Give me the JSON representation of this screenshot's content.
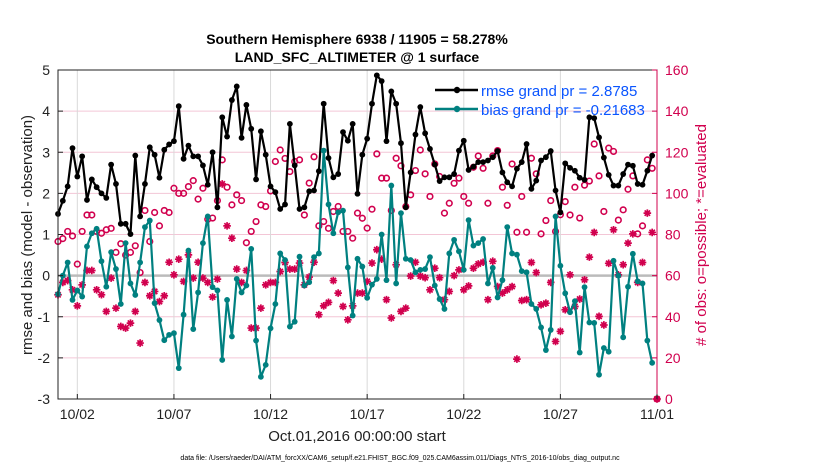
{
  "chart_data": {
    "type": "line",
    "title": [
      "Southern Hemisphere 6938 / 11905 = 58.278%",
      "LAND_SFC_ALTIMETER @ 1 surface"
    ],
    "xlabel": "Oct.01,2016 00:00:00 start",
    "ylabel": "rmse and bias (model - observation)",
    "ylabel_right": "# of obs: o=possible; *=evaluated",
    "footer": "data file: /Users/raeder/DAI/ATM_forcXX/CAM6_setup/f.e21.FHIST_BGC.f09_025.CAM6assim.011/Diags_NTrS_2016-10/obs_diag_output.nc",
    "x_start": "2016-10-01 00:00",
    "x_step_hours": 6,
    "xlim": [
      "10/01",
      "11/01"
    ],
    "x_ticks": [
      "10/02",
      "10/07",
      "10/12",
      "10/17",
      "10/22",
      "10/27",
      "11/01"
    ],
    "x_tick_days": [
      1,
      6,
      11,
      16,
      21,
      26,
      31
    ],
    "ylim": [
      -3,
      5
    ],
    "y_ticks": [
      "-3",
      "-2",
      "-1",
      "0",
      "1",
      "2",
      "3",
      "4",
      "5"
    ],
    "ylim_right": [
      0,
      160
    ],
    "y_ticks_right": [
      "0",
      "20",
      "40",
      "60",
      "80",
      "100",
      "120",
      "140",
      "160"
    ],
    "grid": true,
    "legend_position": "top-right",
    "colors": {
      "rmse": "#000000",
      "bias": "#008080",
      "obs": "#d1004e",
      "legend_text": "#0a55ff",
      "zero_line": "#bbbbbb"
    },
    "series": [
      {
        "name": "rmse grand pr = 2.8785",
        "axis": "left",
        "marker": "filled-circle",
        "values": [
          1.5,
          1.82,
          2.17,
          3.1,
          2.41,
          2.9,
          1.84,
          2.34,
          2.15,
          2.0,
          1.89,
          2.7,
          2.23,
          1.26,
          1.26,
          1.01,
          2.92,
          1.44,
          2.23,
          3.12,
          2.94,
          2.38,
          3.06,
          3.19,
          3.27,
          4.12,
          2.84,
          3.16,
          2.9,
          2.9,
          2.68,
          2.21,
          3.0,
          1.66,
          3.85,
          3.38,
          4.27,
          4.6,
          3.35,
          4.15,
          3.57,
          2.34,
          3.51,
          2.94,
          2.17,
          2.03,
          1.62,
          1.73,
          3.69,
          2.68,
          1.62,
          1.66,
          2.05,
          2.07,
          2.54,
          4.18,
          2.86,
          2.39,
          2.47,
          3.49,
          3.28,
          3.69,
          1.99,
          2.94,
          3.33,
          4.18,
          4.87,
          4.73,
          3.27,
          4.48,
          4.18,
          3.22,
          1.66,
          2.51,
          3.43,
          4.1,
          3.46,
          3.08,
          2.7,
          2.3,
          2.39,
          2.39,
          2.47,
          3.04,
          3.28,
          2.57,
          2.65,
          2.76,
          2.76,
          2.8,
          2.88,
          3.03,
          2.51,
          2.27,
          2.17,
          2.6,
          2.76,
          3.2,
          2.11,
          2.31,
          2.8,
          2.88,
          3.03,
          2.07,
          1.54,
          2.73,
          2.62,
          2.55,
          2.38,
          2.33,
          3.85,
          3.83,
          3.36,
          2.87,
          2.45,
          2.19,
          2.19,
          2.47,
          2.7,
          2.67,
          2.23,
          2.21,
          2.55,
          2.92
        ]
      },
      {
        "name": "bias grand pr = -0.21683",
        "axis": "left",
        "marker": "filled-circle",
        "values": [
          -0.45,
          0,
          0.32,
          -0.59,
          -0.36,
          -0.51,
          0.71,
          1.03,
          1.14,
          0.35,
          -0.27,
          0.57,
          0.16,
          -0.69,
          0.79,
          -0.19,
          -0.47,
          0.32,
          1.18,
          1.34,
          -0.67,
          -1.08,
          -1.57,
          -1.44,
          -1.4,
          -2.25,
          -0.95,
          0.61,
          -1.3,
          -0.41,
          0.79,
          1.44,
          -0.28,
          -0.36,
          -2.05,
          -0.59,
          -1.48,
          -0.08,
          -0.41,
          -0.24,
          0.65,
          -1.58,
          -2.46,
          -2.17,
          -1.28,
          -0.69,
          0.54,
          0.38,
          -1.24,
          -1.12,
          0.46,
          -0.24,
          -0.16,
          0.45,
          0.54,
          3.04,
          1.73,
          1.03,
          1.54,
          1.58,
          0.2,
          -0.97,
          0.41,
          0.22,
          -0.54,
          -0.22,
          -0.08,
          1.0,
          -0.11,
          2.19,
          -0.19,
          1.52,
          0.41,
          0.38,
          0.08,
          0.14,
          0.16,
          0.45,
          -0.24,
          -0.57,
          -0.81,
          0.54,
          0.87,
          0.59,
          0.14,
          1.35,
          0.73,
          0.79,
          0.89,
          -0.19,
          0.19,
          -0.53,
          -0.11,
          1.18,
          0.54,
          0.51,
          0.11,
          0.08,
          -0.69,
          -0.81,
          -1.26,
          -1.81,
          -1.32,
          1.44,
          0.24,
          -0.43,
          -0.89,
          -0.62,
          -1.87,
          -0.28,
          -1.14,
          -1.15,
          -2.41,
          -1.76,
          -1.85,
          0.36,
          0,
          -1.5,
          -0.27,
          0.53,
          -0.14,
          -0.19,
          -1.58,
          -2.12
        ]
      },
      {
        "name": "possible",
        "axis": "right",
        "marker": "open-circle",
        "values": [
          76.6,
          78,
          81.5,
          79.3,
          65.6,
          81.5,
          89.5,
          89.5,
          81.5,
          80.6,
          82.3,
          83,
          71.3,
          75.5,
          70,
          71.3,
          74.5,
          61.5,
          91.7,
          76.6,
          90.7,
          84.2,
          91.7,
          90.7,
          102.5,
          100,
          100,
          103.3,
          106.2,
          97.2,
          102.5,
          87.4,
          88,
          96.5,
          116.3,
          103,
          94.4,
          99.3,
          96.5,
          76,
          81.5,
          86.3,
          94.4,
          93.6,
          101.2,
          115.5,
          121.1,
          117,
          110.6,
          115.5,
          116.3,
          89.5,
          105,
          117.8,
          84.2,
          86.3,
          83,
          91.2,
          93.6,
          81.5,
          81.5,
          78.2,
          90.4,
          87.9,
          83.1,
          92.3,
          119.2,
          107.4,
          107.4,
          91.7,
          117.1,
          113.4,
          93.6,
          99.3,
          111.1,
          121.1,
          109.5,
          98.5,
          114.3,
          108.2,
          90.4,
          95.2,
          104.9,
          107.4,
          98.5,
          95.2,
          112.7,
          118.2,
          112.2,
          95.2,
          118.2,
          120.8,
          103,
          94.2,
          114.3,
          81.1,
          98.5,
          81.1,
          117.1,
          109.5,
          80.3,
          86.8,
          96.5,
          81.5,
          89.6,
          96,
          89.5,
          103,
          88,
          104,
          106,
          124,
          108.5,
          91.2,
          122,
          120.4,
          87,
          92,
          102,
          108.5,
          80.3,
          84.2,
          116.3,
          112.2,
          0
        ]
      },
      {
        "name": "evaluated",
        "axis": "right",
        "marker": "asterisk",
        "values": [
          50.7,
          56.7,
          57.6,
          53.1,
          45.3,
          55.5,
          62.5,
          62.5,
          53.1,
          50.7,
          42.6,
          58.8,
          44.2,
          35.3,
          34.5,
          36.9,
          42.6,
          27.2,
          56.7,
          50.2,
          52.3,
          47.4,
          50.2,
          66.5,
          60.4,
          68,
          57.2,
          70.1,
          58.8,
          66.5,
          58.8,
          56.7,
          49.6,
          58.3,
          104.6,
          84.2,
          78.2,
          63.2,
          56.7,
          62.5,
          34.5,
          34.5,
          44.2,
          55.5,
          56.7,
          56.7,
          62,
          66.4,
          63.2,
          63.2,
          66.1,
          55.5,
          59.3,
          66.5,
          41,
          45.3,
          47,
          57.6,
          51.5,
          45,
          38.5,
          45.3,
          51.5,
          51.5,
          57.2,
          66.1,
          72.6,
          68,
          48.3,
          39.4,
          65.3,
          42.6,
          44.2,
          59.8,
          66.5,
          59.8,
          59,
          53.1,
          63.6,
          59,
          48.3,
          52.3,
          60,
          62.8,
          53.1,
          55,
          63.6,
          65.7,
          66.5,
          48.3,
          67,
          54.7,
          51.5,
          53.1,
          54.7,
          19.4,
          47.9,
          48.3,
          66.4,
          61.5,
          45.8,
          46.6,
          56.7,
          28,
          32.9,
          43.4,
          60.4,
          45,
          48.6,
          58,
          69,
          81,
          40.2,
          36,
          66,
          82.3,
          60.4,
          65.3,
          75.8,
          80.3,
          56.7,
          66.4,
          90.4,
          81,
          0
        ]
      }
    ]
  }
}
